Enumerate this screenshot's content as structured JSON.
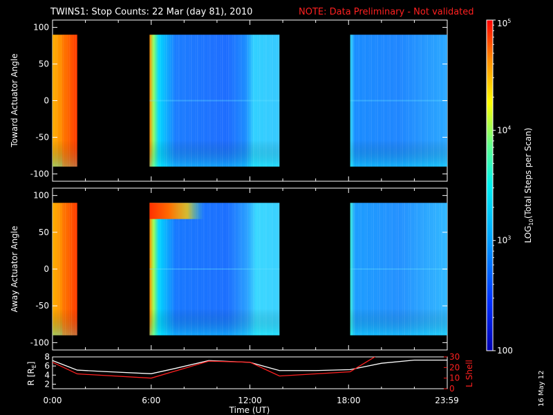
{
  "header": {
    "title": "TWINS1: Stop Counts: 22 Mar (day  81), 2010",
    "note": "NOTE: Data Preliminary - Not validated"
  },
  "footer": {
    "date_stamp": "16 May 12"
  },
  "colors": {
    "background": "#000000",
    "frame": "#ffffff",
    "note": "#ff2020",
    "lshell": "#ff2020",
    "radius": "#ffffff"
  },
  "colorbar": {
    "label_pre": "LOG",
    "label_sub": "10",
    "label_post": "(Total Steps per Scan)",
    "ticks": [
      {
        "value": 100,
        "base": "100",
        "exp": ""
      },
      {
        "value": 1000,
        "base": "10",
        "exp": "3"
      },
      {
        "value": 10000,
        "base": "10",
        "exp": "4"
      },
      {
        "value": 100000,
        "base": "10",
        "exp": "5"
      }
    ],
    "range": [
      100,
      100000
    ],
    "scale": "log"
  },
  "chart_data": [
    {
      "type": "heatmap",
      "ylabel": "Toward Actuator Angle",
      "ylim": [
        -110,
        110
      ],
      "yticks": [
        "100",
        "50",
        "0",
        "-50",
        "-100"
      ],
      "ytick_values": [
        100,
        50,
        0,
        -50,
        -100
      ],
      "xlim": [
        0,
        24
      ],
      "data_y_range": [
        -90,
        90
      ],
      "data_segments": [
        {
          "start_hour": 0.0,
          "end_hour": 1.5,
          "level": "high (~1e4.5-1e5)"
        },
        {
          "start_hour": 5.9,
          "end_hour": 13.8,
          "level": "low-medium (~1e2.5-1e3.5)"
        },
        {
          "start_hour": 18.1,
          "end_hour": 24.0,
          "level": "low-medium (~1e2.5-1e3.5)"
        }
      ],
      "grid": false
    },
    {
      "type": "heatmap",
      "ylabel": "Away Actuator Angle",
      "ylim": [
        -110,
        110
      ],
      "yticks": [
        "100",
        "50",
        "0",
        "-50",
        "-100"
      ],
      "ytick_values": [
        100,
        50,
        0,
        -50,
        -100
      ],
      "xlim": [
        0,
        24
      ],
      "data_y_range": [
        -90,
        90
      ],
      "data_segments": [
        {
          "start_hour": 0.0,
          "end_hour": 1.5,
          "level": "high (~1e4.5-1e5)"
        },
        {
          "start_hour": 5.9,
          "end_hour": 13.8,
          "level": "low-medium, high band near 70-90 deg around 6-9 UT"
        },
        {
          "start_hour": 18.1,
          "end_hour": 24.0,
          "level": "low-medium (~1e2.5-1e3.5)"
        }
      ],
      "grid": false
    },
    {
      "type": "line",
      "ylabel": "R [R",
      "ylabel_sub": "E",
      "ylabel_close": "]",
      "ylabel_right": "L Shell",
      "ylim": [
        1,
        8
      ],
      "yticks": [
        "8",
        "6",
        "4",
        "2"
      ],
      "ytick_values": [
        8,
        6,
        4,
        2
      ],
      "y2lim": [
        0,
        30
      ],
      "y2ticks": [
        "30",
        "20",
        "10",
        "0"
      ],
      "y2tick_values": [
        30,
        20,
        10,
        0
      ],
      "xlabel": "Time (UT)",
      "xticks": [
        "0:00",
        "6:00",
        "12:00",
        "18:00",
        "23:59"
      ],
      "xtick_values": [
        0,
        6,
        12,
        18,
        23.98
      ],
      "xlim": [
        0,
        24
      ],
      "series": [
        {
          "name": "R",
          "axis": "left",
          "x": [
            0,
            1.5,
            3,
            6,
            7.5,
            9.5,
            12,
            13.8,
            16,
            18.1,
            20,
            22,
            24
          ],
          "values": [
            7.2,
            5.1,
            4.8,
            4.3,
            5.5,
            7.2,
            6.8,
            5.0,
            5.0,
            5.2,
            6.6,
            7.3,
            7.3
          ]
        },
        {
          "name": "L Shell",
          "axis": "right",
          "x": [
            0,
            1.5,
            6,
            9.5,
            12,
            13.8,
            18.1,
            19.7
          ],
          "values": [
            25,
            14,
            10,
            26,
            25,
            12,
            16,
            31
          ]
        }
      ]
    }
  ]
}
